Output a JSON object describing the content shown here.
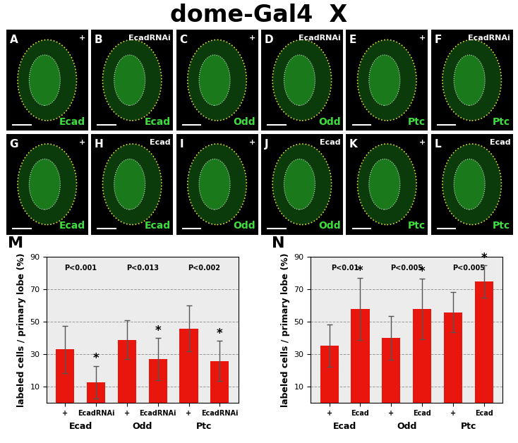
{
  "title": "dome-Gal4  X",
  "panels": [
    {
      "letter": "A",
      "genotype": "+",
      "stain": "Ecad"
    },
    {
      "letter": "B",
      "genotype": "EcadRNAi",
      "stain": "Ecad"
    },
    {
      "letter": "C",
      "genotype": "+",
      "stain": "Odd"
    },
    {
      "letter": "D",
      "genotype": "EcadRNAi",
      "stain": "Odd"
    },
    {
      "letter": "E",
      "genotype": "+",
      "stain": "Ptc"
    },
    {
      "letter": "F",
      "genotype": "EcadRNAi",
      "stain": "Ptc"
    },
    {
      "letter": "G",
      "genotype": "+",
      "stain": "Ecad"
    },
    {
      "letter": "H",
      "genotype": "Ecad",
      "stain": "Ecad"
    },
    {
      "letter": "I",
      "genotype": "+",
      "stain": "Odd"
    },
    {
      "letter": "J",
      "genotype": "Ecad",
      "stain": "Odd"
    },
    {
      "letter": "K",
      "genotype": "+",
      "stain": "Ptc"
    },
    {
      "letter": "L",
      "genotype": "Ecad",
      "stain": "Ptc"
    }
  ],
  "chart_data": [
    {
      "type": "bar",
      "title": "M",
      "y_label": "labeled cells / primary lobe (%)",
      "categories": [
        "+",
        "EcadRNAi",
        "+",
        "EcadRNAi",
        "+",
        "EcadRNAi"
      ],
      "groups": [
        "Ecad",
        "Odd",
        "Ptc"
      ],
      "values": [
        33,
        13,
        39,
        27,
        46,
        26
      ],
      "errors": [
        14.5,
        10,
        12,
        13,
        14,
        12.5
      ],
      "significance_labels": [
        null,
        "*",
        null,
        "*",
        null,
        "*"
      ],
      "annotations": [
        "P<0.001",
        "P<0.013",
        "P<0.002"
      ],
      "color": "#e8160c",
      "ylim": [
        0,
        90
      ],
      "yticks": [
        10,
        30,
        50,
        70,
        90
      ],
      "grid": true
    },
    {
      "type": "bar",
      "title": "N",
      "y_label": "labeled cells / primary lobe (%)",
      "categories": [
        "+",
        "Ecad",
        "+",
        "Ecad",
        "+",
        "Ecad"
      ],
      "groups": [
        "Ecad",
        "Odd",
        "Ptc"
      ],
      "values": [
        35.5,
        58,
        40,
        58,
        56,
        75
      ],
      "errors": [
        13,
        19,
        13.5,
        18.5,
        12.5,
        10
      ],
      "significance_labels": [
        null,
        "*",
        null,
        "*",
        null,
        "*"
      ],
      "annotations": [
        "P<0.01",
        "P<0.005",
        "P<0.005"
      ],
      "color": "#e8160c",
      "ylim": [
        0,
        90
      ],
      "yticks": [
        10,
        30,
        50,
        70,
        90
      ],
      "grid": true
    }
  ]
}
